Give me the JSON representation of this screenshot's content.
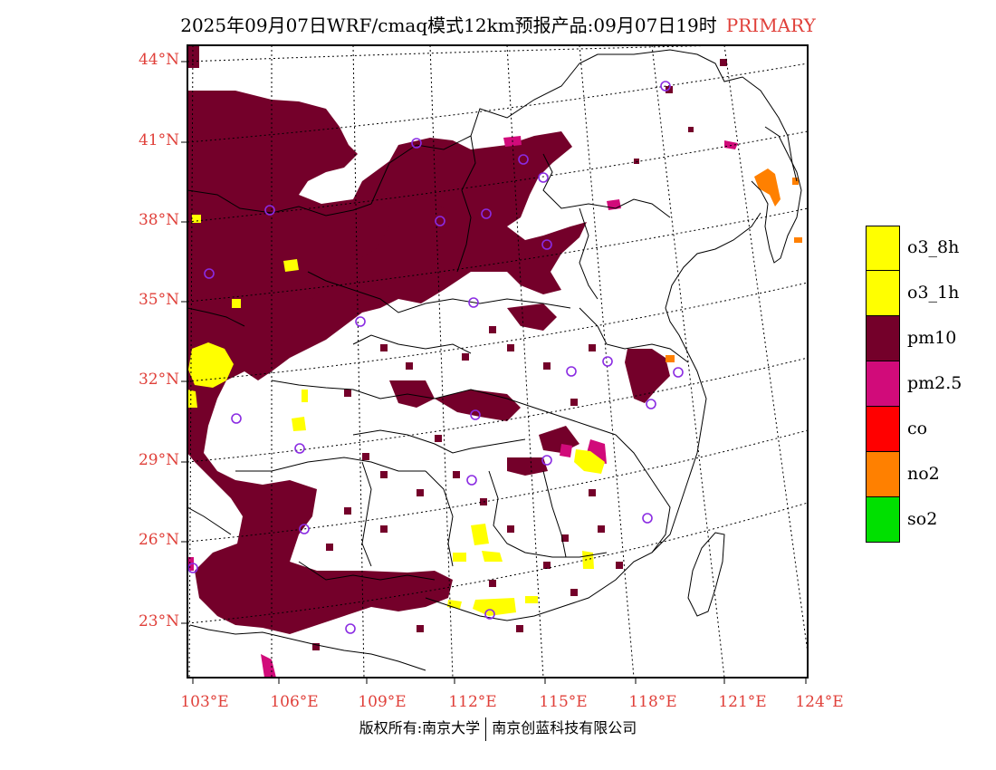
{
  "title": {
    "main": "2025年09月07日WRF/cmaq模式12km预报产品:09月07日19时",
    "tag": "PRIMARY"
  },
  "map": {
    "lat_labels": [
      "44°N",
      "41°N",
      "38°N",
      "35°N",
      "32°N",
      "29°N",
      "26°N",
      "23°N"
    ],
    "lon_labels": [
      "103°E",
      "106°E",
      "109°E",
      "112°E",
      "115°E",
      "118°E",
      "121°E",
      "124°E"
    ],
    "colors": {
      "pm10": "#74002a",
      "pm25": "#d10b7a",
      "o3": "#ffff00",
      "no2": "#ff8000",
      "station": "#8a2be2",
      "label": "#e0403a"
    }
  },
  "legend": [
    {
      "label": "o3_8h",
      "color": "#ffff00"
    },
    {
      "label": "o3_1h",
      "color": "#ffff00"
    },
    {
      "label": "pm10",
      "color": "#74002a"
    },
    {
      "label": "pm2.5",
      "color": "#d10b7a"
    },
    {
      "label": "co",
      "color": "#ff0000"
    },
    {
      "label": "no2",
      "color": "#ff8000"
    },
    {
      "label": "so2",
      "color": "#00e000"
    }
  ],
  "footer": {
    "left": "版权所有:南京大学",
    "right": "南京创蓝科技有限公司"
  }
}
